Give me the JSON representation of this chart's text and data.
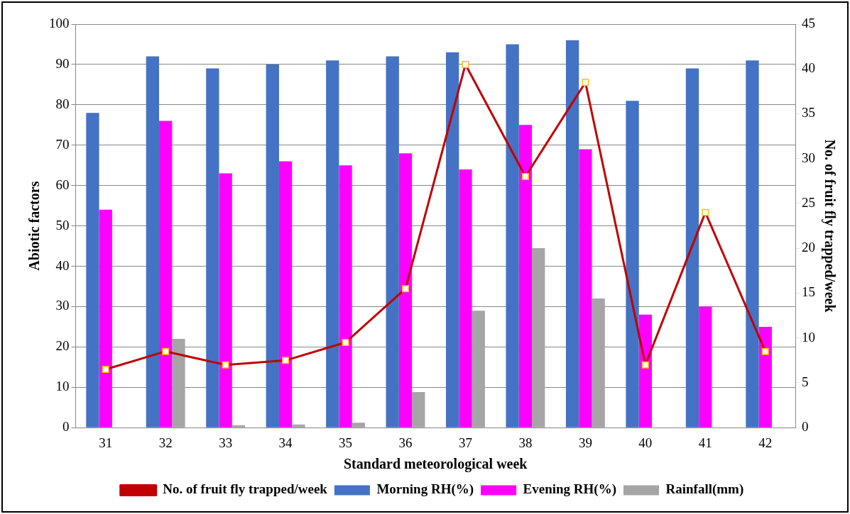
{
  "chart_data": {
    "type": "bar",
    "xlabel": "Standard meteorological week",
    "ylabel": "Abiotic factors",
    "y2label": "No. of fruit fly trapped/week",
    "categories": [
      "31",
      "32",
      "33",
      "34",
      "35",
      "36",
      "37",
      "38",
      "39",
      "40",
      "41",
      "42"
    ],
    "series": [
      {
        "name": "Morning RH(%)",
        "color": "#4472c4",
        "values": [
          78,
          92,
          89,
          90,
          91,
          92,
          93,
          95,
          96,
          81,
          89,
          91
        ]
      },
      {
        "name": "Evening RH(%)",
        "color": "#ff00ff",
        "values": [
          54,
          76,
          63,
          66,
          65,
          68,
          64,
          75,
          69,
          28,
          30,
          25
        ]
      },
      {
        "name": "Rainfall(mm)",
        "color": "#a5a5a5",
        "values": [
          0,
          22,
          0.6,
          0.8,
          1.2,
          8.8,
          29,
          44.5,
          32,
          0,
          0,
          0
        ]
      },
      {
        "name": "No. of fruit fly trapped/week",
        "type": "line",
        "axis": "y2",
        "color": "#c00000",
        "marker": "square",
        "values": [
          6.5,
          8.5,
          7,
          7.5,
          9.5,
          15.5,
          40.5,
          28,
          38.5,
          7,
          24,
          8.5
        ]
      }
    ],
    "ylim": [
      0,
      100
    ],
    "yticks": [
      0,
      10,
      20,
      30,
      40,
      50,
      60,
      70,
      80,
      90,
      100
    ],
    "y2lim": [
      0,
      45
    ],
    "y2ticks": [
      0,
      5,
      10,
      15,
      20,
      25,
      30,
      35,
      40,
      45
    ],
    "grid": "y",
    "legend": "bottom"
  }
}
